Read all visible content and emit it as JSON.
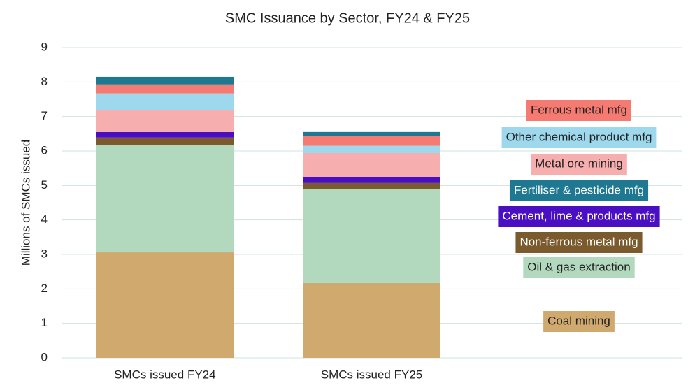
{
  "chart_data": {
    "type": "stacked_bar",
    "title": "SMC Issuance by Sector, FY24 & FY25",
    "y_label": "Millions of SMCs issued",
    "categories": [
      "SMCs issued FY24",
      "SMCs issued FY25"
    ],
    "series": [
      {
        "name": "Coal mining",
        "color": "#cfa96e",
        "values": [
          3.06,
          2.17
        ]
      },
      {
        "name": "Oil & gas extraction",
        "color": "#b2d9be",
        "values": [
          3.11,
          2.72
        ]
      },
      {
        "name": "Non-ferrous metal mfg",
        "color": "#7b5a2e",
        "values": [
          0.22,
          0.18
        ]
      },
      {
        "name": "Cement, lime & products mfg",
        "color": "#4a0fc2",
        "values": [
          0.16,
          0.18
        ]
      },
      {
        "name": "Metal ore mining",
        "color": "#f7aeae",
        "values": [
          0.63,
          0.69
        ]
      },
      {
        "name": "Other chemical product mfg",
        "color": "#9ed8ec",
        "values": [
          0.49,
          0.21
        ]
      },
      {
        "name": "Ferrous metal mfg",
        "color": "#f57b72",
        "values": [
          0.26,
          0.28
        ]
      },
      {
        "name": "Fertiliser & pesticide mfg",
        "color": "#1f7891",
        "values": [
          0.22,
          0.12
        ]
      }
    ],
    "ylim": [
      0,
      9
    ],
    "yticks": [
      0,
      1,
      2,
      3,
      4,
      5,
      6,
      7,
      8,
      9
    ],
    "grid": true
  }
}
